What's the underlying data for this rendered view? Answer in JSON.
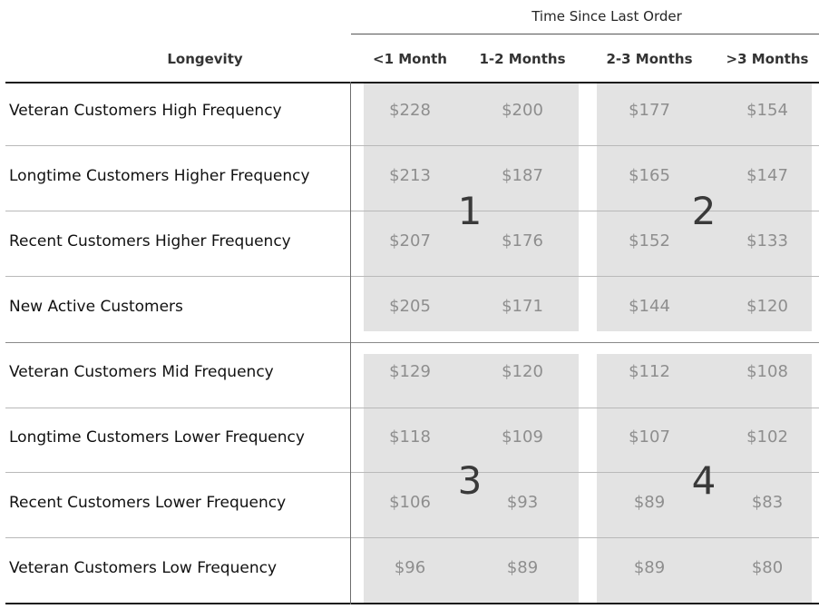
{
  "header": {
    "group_title": "Time Since Last Order",
    "row_header": "Longevity",
    "columns": [
      "<1 Month",
      "1-2 Months",
      "2-3 Months",
      ">3 Months"
    ]
  },
  "quadrant_labels": [
    "1",
    "2",
    "3",
    "4"
  ],
  "rows": [
    {
      "label": "Veteran Customers High Frequency",
      "values": [
        "$228",
        "$200",
        "$177",
        "$154"
      ]
    },
    {
      "label": "Longtime Customers Higher Frequency",
      "values": [
        "$213",
        "$187",
        "$165",
        "$147"
      ]
    },
    {
      "label": "Recent Customers Higher Frequency",
      "values": [
        "$207",
        "$176",
        "$152",
        "$133"
      ]
    },
    {
      "label": "New Active Customers",
      "values": [
        "$205",
        "$171",
        "$144",
        "$120"
      ]
    },
    {
      "label": "Veteran Customers Mid Frequency",
      "values": [
        "$129",
        "$120",
        "$112",
        "$108"
      ]
    },
    {
      "label": "Longtime Customers Lower Frequency",
      "values": [
        "$118",
        "$109",
        "$107",
        "$102"
      ]
    },
    {
      "label": "Recent Customers Lower Frequency",
      "values": [
        "$106",
        "$93",
        "$89",
        "$83"
      ]
    },
    {
      "label": "Veteran Customers Low Frequency",
      "values": [
        "$96",
        "$89",
        "$89",
        "$80"
      ]
    }
  ],
  "chart_data": {
    "type": "table",
    "title": "Time Since Last Order",
    "row_header": "Longevity",
    "columns": [
      "<1 Month",
      "1-2 Months",
      "2-3 Months",
      ">3 Months"
    ],
    "rows": [
      "Veteran Customers High Frequency",
      "Longtime Customers Higher Frequency",
      "Recent Customers Higher Frequency",
      "New Active Customers",
      "Veteran Customers Mid Frequency",
      "Longtime Customers Lower Frequency",
      "Recent Customers Lower Frequency",
      "Veteran Customers Low Frequency"
    ],
    "values": [
      [
        228,
        200,
        177,
        154
      ],
      [
        213,
        187,
        165,
        147
      ],
      [
        207,
        176,
        152,
        133
      ],
      [
        205,
        171,
        144,
        120
      ],
      [
        129,
        120,
        112,
        108
      ],
      [
        118,
        109,
        107,
        102
      ],
      [
        106,
        93,
        89,
        83
      ],
      [
        96,
        89,
        89,
        80
      ]
    ],
    "quadrants": [
      "1",
      "2",
      "3",
      "4"
    ]
  }
}
